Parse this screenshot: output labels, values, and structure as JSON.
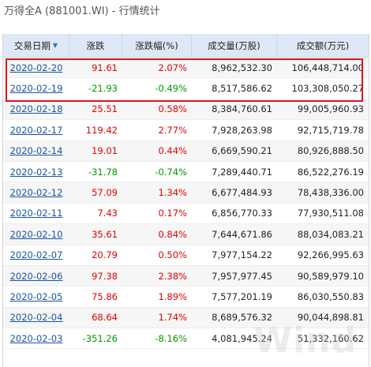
{
  "title": "万得全A (881001.WI) - 行情统计",
  "headers": {
    "date": "交易日期",
    "change": "涨跌",
    "pct": "涨跌幅(%)",
    "volume": "成交量(万股)",
    "amount": "成交额(万元)"
  },
  "sort_indicator": "▼",
  "colors": {
    "up": "#e60000",
    "down": "#009900",
    "link": "#1a55a5",
    "highlight": "#e0141e",
    "header_bg": "#dfe8f7"
  },
  "rows": [
    {
      "date": "2020-02-20",
      "change": "91.61",
      "pct": "2.07%",
      "volume": "8,962,532.30",
      "amount": "106,448,714.00",
      "dir": "up"
    },
    {
      "date": "2020-02-19",
      "change": "-21.93",
      "pct": "-0.49%",
      "volume": "8,517,586.62",
      "amount": "103,308,050.27",
      "dir": "down"
    },
    {
      "date": "2020-02-18",
      "change": "25.51",
      "pct": "0.58%",
      "volume": "8,384,760.61",
      "amount": "99,005,960.93",
      "dir": "up"
    },
    {
      "date": "2020-02-17",
      "change": "119.42",
      "pct": "2.77%",
      "volume": "7,928,263.98",
      "amount": "92,715,719.78",
      "dir": "up"
    },
    {
      "date": "2020-02-14",
      "change": "19.01",
      "pct": "0.44%",
      "volume": "6,669,590.21",
      "amount": "80,926,888.50",
      "dir": "up"
    },
    {
      "date": "2020-02-13",
      "change": "-31.78",
      "pct": "-0.74%",
      "volume": "7,289,440.71",
      "amount": "86,522,276.19",
      "dir": "down"
    },
    {
      "date": "2020-02-12",
      "change": "57.09",
      "pct": "1.34%",
      "volume": "6,677,484.93",
      "amount": "78,438,336.00",
      "dir": "up"
    },
    {
      "date": "2020-02-11",
      "change": "7.43",
      "pct": "0.17%",
      "volume": "6,856,770.33",
      "amount": "77,930,511.08",
      "dir": "up"
    },
    {
      "date": "2020-02-10",
      "change": "35.61",
      "pct": "0.84%",
      "volume": "7,644,671.86",
      "amount": "88,034,083.21",
      "dir": "up"
    },
    {
      "date": "2020-02-07",
      "change": "20.79",
      "pct": "0.50%",
      "volume": "7,977,154.22",
      "amount": "92,266,995.63",
      "dir": "up"
    },
    {
      "date": "2020-02-06",
      "change": "97.38",
      "pct": "2.38%",
      "volume": "7,957,977.45",
      "amount": "90,589,979.10",
      "dir": "up"
    },
    {
      "date": "2020-02-05",
      "change": "75.86",
      "pct": "1.89%",
      "volume": "7,577,201.19",
      "amount": "86,030,550.83",
      "dir": "up"
    },
    {
      "date": "2020-02-04",
      "change": "68.64",
      "pct": "1.74%",
      "volume": "8,689,576.32",
      "amount": "90,044,898.81",
      "dir": "up"
    },
    {
      "date": "2020-02-03",
      "change": "-351.26",
      "pct": "-8.16%",
      "volume": "4,081,945.24",
      "amount": "51,332,160.62",
      "dir": "down"
    }
  ],
  "watermark": "Wind"
}
